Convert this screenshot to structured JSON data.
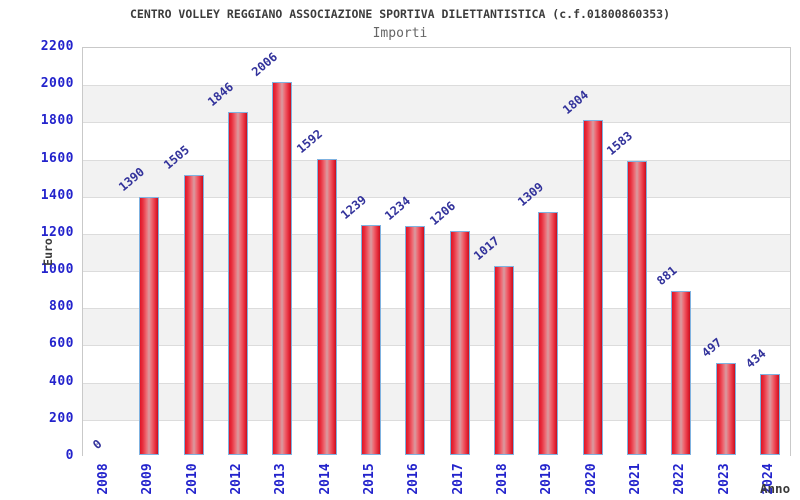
{
  "title": "CENTRO VOLLEY REGGIANO ASSOCIAZIONE SPORTIVA DILETTANTISTICA (c.f.01800860353)",
  "subtitle": "Importi",
  "chart_data": {
    "type": "bar",
    "categories": [
      "2008",
      "2009",
      "2010",
      "2012",
      "2013",
      "2014",
      "2015",
      "2016",
      "2017",
      "2018",
      "2019",
      "2020",
      "2021",
      "2022",
      "2023",
      "2024"
    ],
    "values": [
      0,
      1390,
      1505,
      1846,
      2006,
      1592,
      1239,
      1234,
      1206,
      1017,
      1309,
      1804,
      1583,
      881,
      497,
      434
    ],
    "title": "Importi",
    "xlabel": "Anno",
    "ylabel": "Euro",
    "ylim": [
      0,
      2200
    ],
    "ytick_step": 200,
    "legend": "none",
    "grid": "horizontal-bands",
    "colors": {
      "bar_fill": "#e01426",
      "bar_border": "#7fb2e0",
      "axis_tick_text": "#2323cc",
      "bar_value_text": "#32329b",
      "band_shade": "#f2f2f2",
      "band_plain": "#ffffff"
    }
  }
}
